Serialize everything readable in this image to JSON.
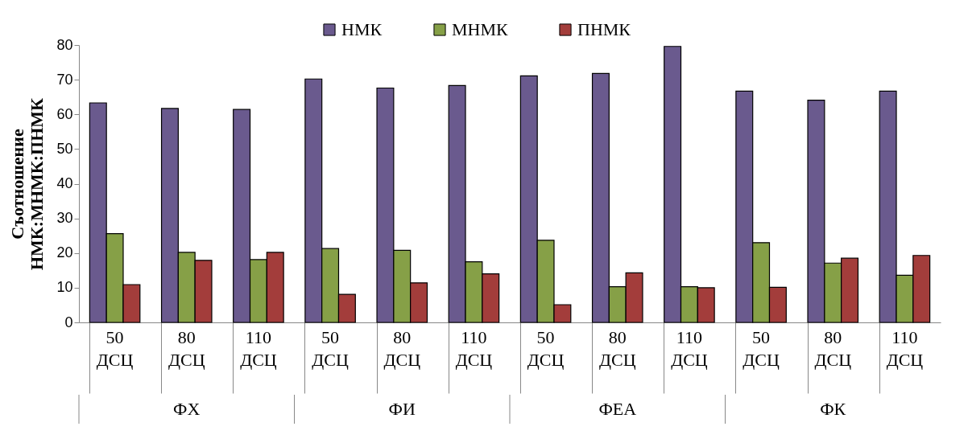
{
  "chart_data": {
    "type": "bar",
    "ylabel": "Съотношение\nНМК:МНМК:ПНМК",
    "categories": [
      "50 ДСЦ",
      "80 ДСЦ",
      "110 ДСЦ",
      "50 ДСЦ",
      "80 ДСЦ",
      "110 ДСЦ",
      "50 ДСЦ",
      "80 ДСЦ",
      "110 ДСЦ",
      "50 ДСЦ",
      "80 ДСЦ",
      "110 ДСЦ"
    ],
    "series": [
      {
        "name": "НМК",
        "color": "#6a5a8e",
        "values": [
          63.3,
          61.7,
          61.4,
          70.2,
          67.6,
          68.3,
          71.1,
          71.8,
          79.6,
          66.7,
          64.1,
          66.7
        ]
      },
      {
        "name": "МНМК",
        "color": "#86a047",
        "values": [
          25.6,
          20.2,
          18.1,
          21.3,
          20.8,
          17.5,
          23.7,
          10.3,
          10.3,
          23.0,
          17.1,
          13.6
        ]
      },
      {
        "name": "ПНМК",
        "color": "#a33d3b",
        "values": [
          10.9,
          17.9,
          20.2,
          8.1,
          11.4,
          14.0,
          5.1,
          14.3,
          10.0,
          10.1,
          18.5,
          19.3
        ]
      }
    ],
    "annotations": [
      "ФХ",
      "ФИ",
      "ФЕА",
      "ФК"
    ],
    "ylim": [
      0,
      80
    ],
    "yticks": [
      0,
      10,
      20,
      30,
      40,
      50,
      60,
      70,
      80
    ],
    "grid": false,
    "legend": "top"
  }
}
